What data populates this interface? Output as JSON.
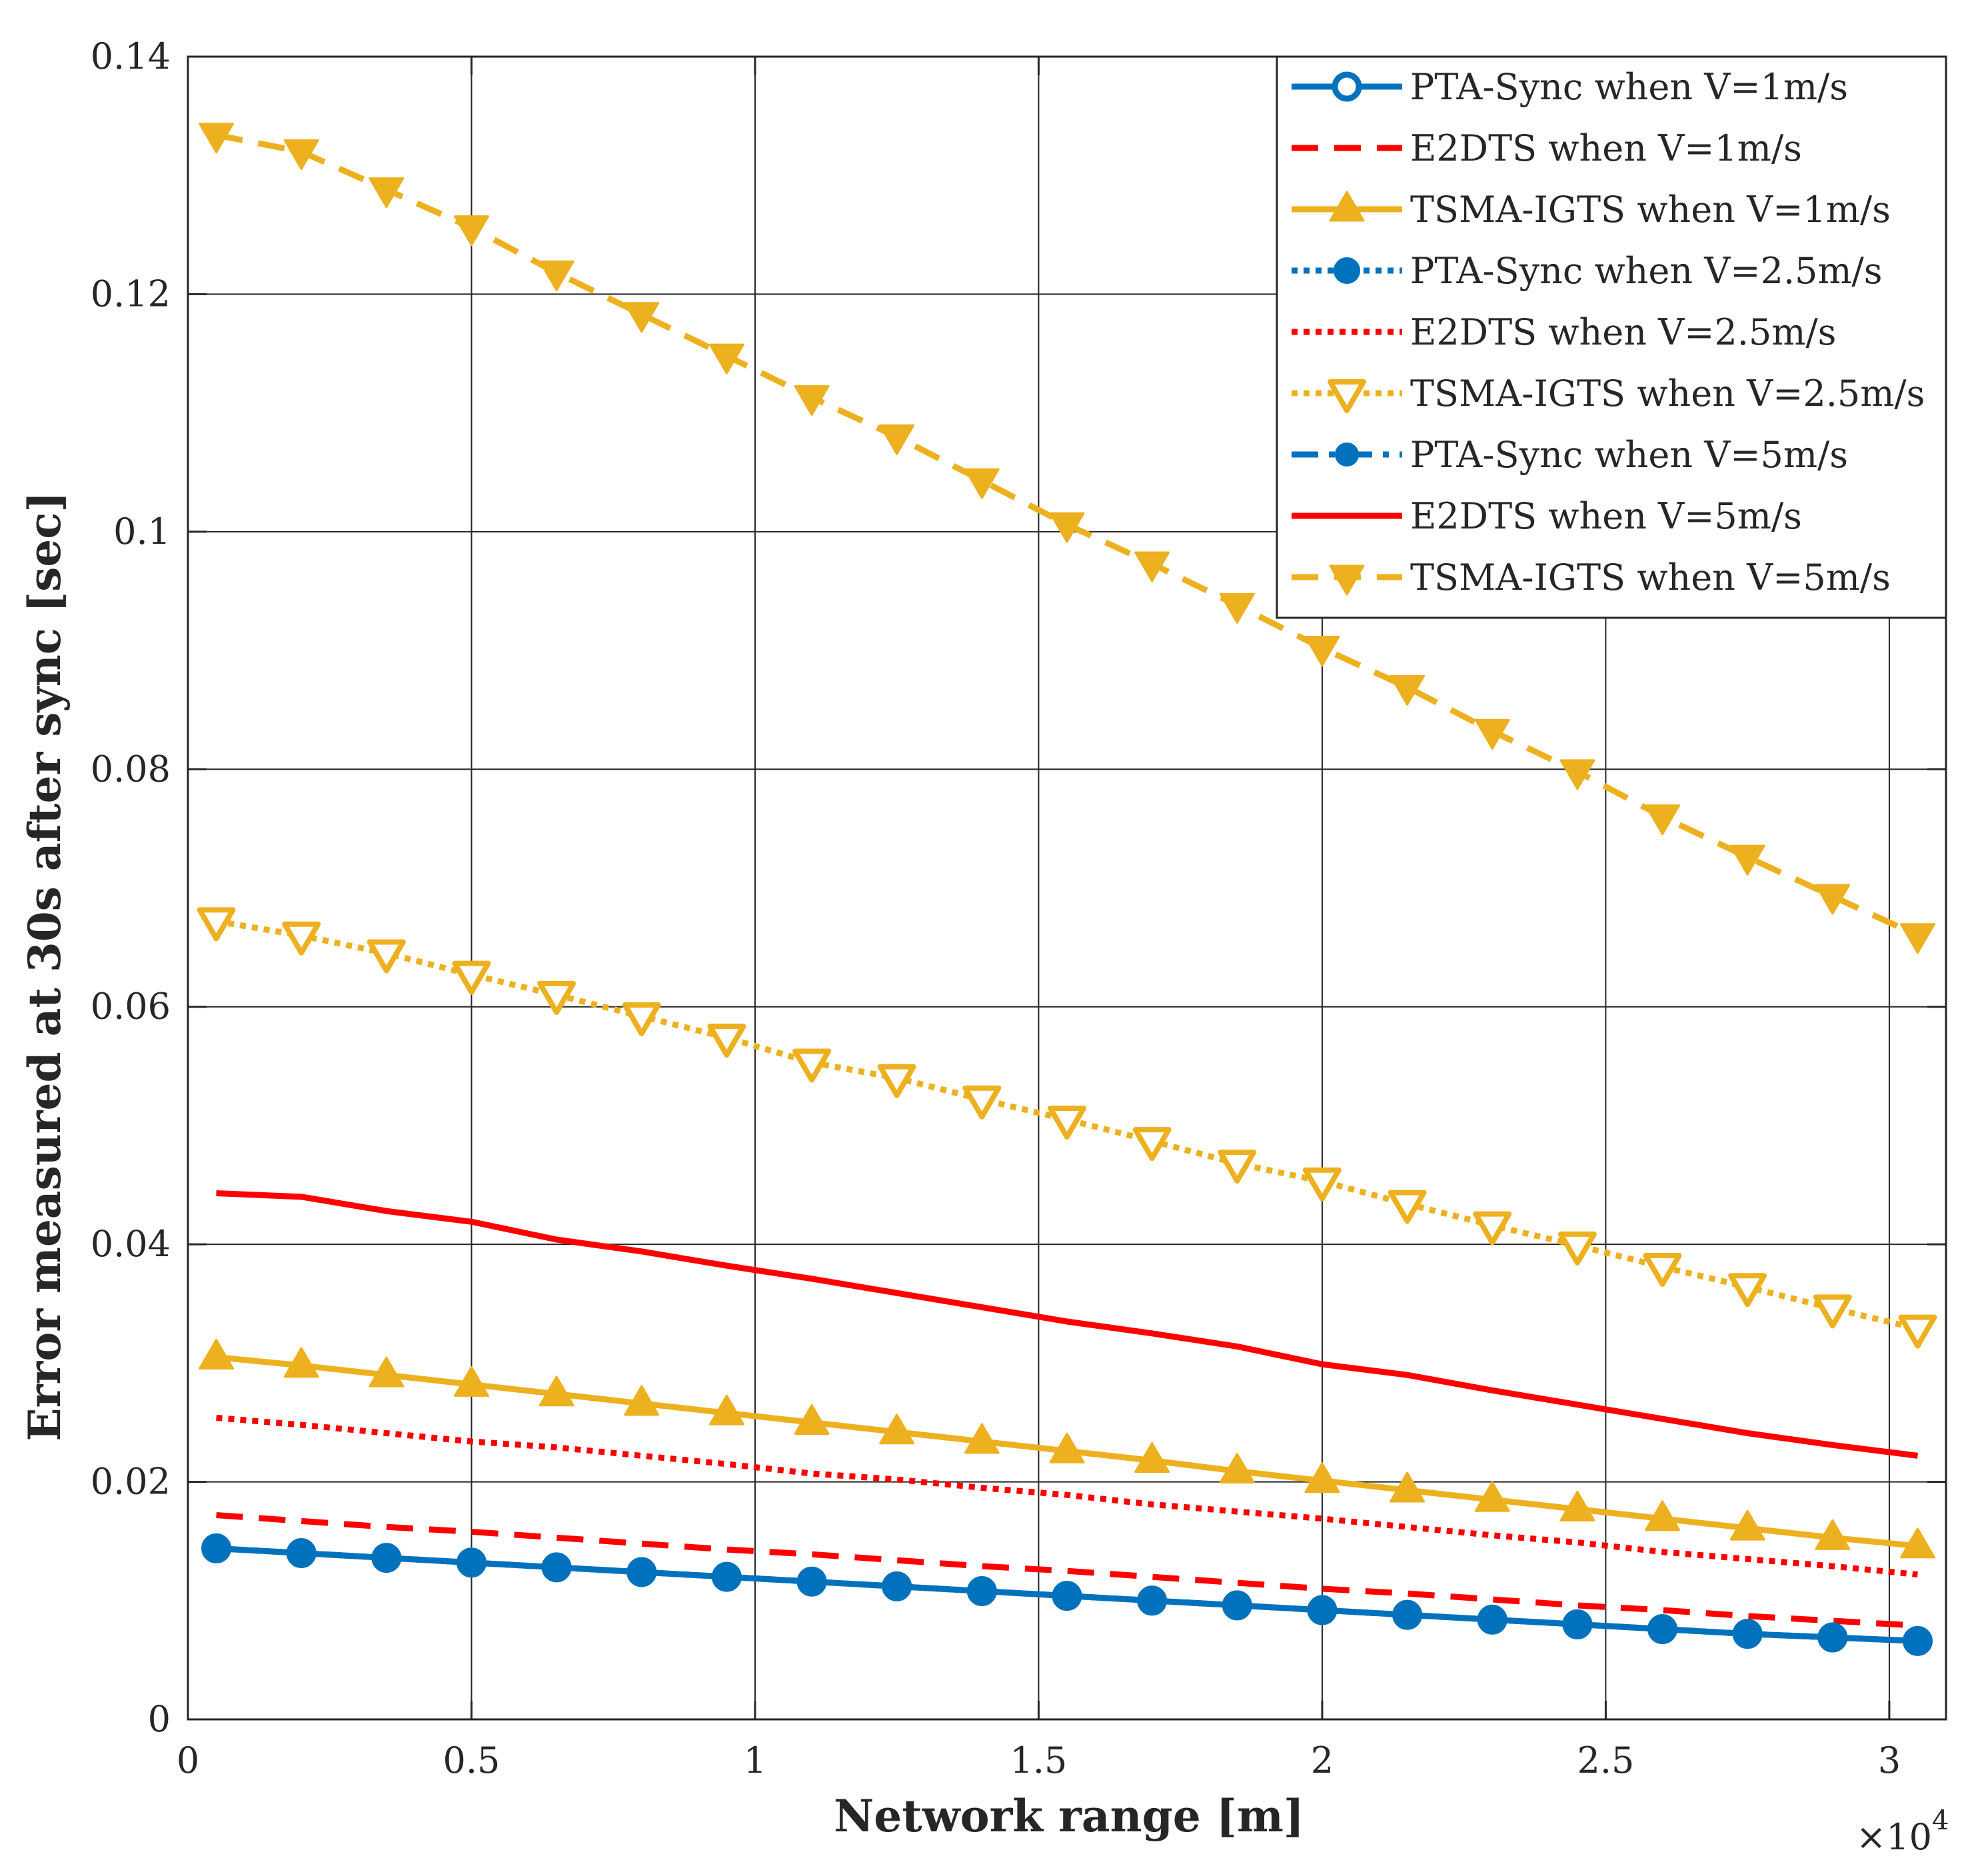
{
  "chart_data": {
    "type": "line",
    "title": "",
    "xlabel": "Network range [m]",
    "ylabel": "Error measured at 30s after sync [sec]",
    "x_multiplier_label": "×10",
    "x_multiplier_exponent": "4",
    "xlim": [
      0,
      3.1
    ],
    "ylim": [
      0,
      0.14
    ],
    "grid": "major x/y",
    "legend_position": "top-right",
    "x_ticks": [
      0,
      0.5,
      1,
      1.5,
      2,
      2.5,
      3
    ],
    "x_tick_labels": [
      "0",
      "0.5",
      "1",
      "1.5",
      "2",
      "2.5",
      "3"
    ],
    "y_ticks": [
      0,
      0.02,
      0.04,
      0.06,
      0.08,
      0.1,
      0.12,
      0.14
    ],
    "y_tick_labels": [
      "0",
      "0.02",
      "0.04",
      "0.06",
      "0.08",
      "0.1",
      "0.12",
      "0.14"
    ],
    "x": [
      0.05,
      0.2,
      0.35,
      0.5,
      0.65,
      0.8,
      0.95,
      1.1,
      1.25,
      1.4,
      1.55,
      1.7,
      1.85,
      2.0,
      2.15,
      2.3,
      2.45,
      2.6,
      2.75,
      2.9,
      3.05
    ],
    "series": [
      {
        "name": "PTA-Sync when V=1m/s",
        "color": "#0072BD",
        "dash": "solid",
        "marker": "circle-open",
        "values": [
          0.0144,
          0.014,
          0.0136,
          0.0132,
          0.0128,
          0.0124,
          0.012,
          0.0116,
          0.0112,
          0.0108,
          0.0104,
          0.01,
          0.0096,
          0.0092,
          0.0088,
          0.0084,
          0.008,
          0.0076,
          0.0072,
          0.0069,
          0.0066
        ]
      },
      {
        "name": "E2DTS when V=1m/s",
        "color": "#FF0000",
        "dash": "dashed",
        "marker": "none",
        "values": [
          0.0172,
          0.0167,
          0.0162,
          0.0158,
          0.0153,
          0.0148,
          0.0143,
          0.0139,
          0.0134,
          0.0129,
          0.0125,
          0.012,
          0.0115,
          0.011,
          0.0106,
          0.0101,
          0.0096,
          0.0092,
          0.0087,
          0.0083,
          0.0079
        ]
      },
      {
        "name": "TSMA-IGTS when V=1m/s",
        "color": "#EDB120",
        "dash": "solid",
        "marker": "triangle-up",
        "values": [
          0.0305,
          0.0298,
          0.029,
          0.0282,
          0.0274,
          0.0266,
          0.0258,
          0.025,
          0.0242,
          0.0234,
          0.0226,
          0.0218,
          0.0209,
          0.0201,
          0.0193,
          0.0185,
          0.0177,
          0.0169,
          0.0161,
          0.0153,
          0.0146
        ]
      },
      {
        "name": "PTA-Sync when V=2.5m/s",
        "color": "#0072BD",
        "dash": "dotted",
        "marker": "circle-filled",
        "values": [
          0.0144,
          0.014,
          0.0136,
          0.0132,
          0.0128,
          0.0124,
          0.012,
          0.0116,
          0.0112,
          0.0108,
          0.0104,
          0.01,
          0.0096,
          0.0092,
          0.0088,
          0.0084,
          0.008,
          0.0076,
          0.0072,
          0.0069,
          0.0066
        ]
      },
      {
        "name": "E2DTS when V=2.5m/s",
        "color": "#FF0000",
        "dash": "dotted",
        "marker": "none",
        "values": [
          0.0254,
          0.0248,
          0.0241,
          0.0234,
          0.0229,
          0.0222,
          0.0215,
          0.0207,
          0.0202,
          0.0195,
          0.0189,
          0.0181,
          0.0175,
          0.0169,
          0.0162,
          0.0155,
          0.0149,
          0.0141,
          0.0135,
          0.0129,
          0.0122
        ]
      },
      {
        "name": "TSMA-IGTS when V=2.5m/s",
        "color": "#EDB120",
        "dash": "dotted",
        "marker": "triangle-down-open",
        "values": [
          0.0672,
          0.066,
          0.0645,
          0.0627,
          0.061,
          0.0592,
          0.0574,
          0.0553,
          0.054,
          0.0522,
          0.0505,
          0.0487,
          0.0468,
          0.0453,
          0.0434,
          0.0416,
          0.0399,
          0.0381,
          0.0364,
          0.0346,
          0.0329
        ]
      },
      {
        "name": "PTA-Sync when V=5m/s",
        "color": "#0072BD",
        "dash": "dashdot",
        "marker": "circle-open-small",
        "values": [
          0.0144,
          0.014,
          0.0136,
          0.0132,
          0.0128,
          0.0124,
          0.012,
          0.0116,
          0.0112,
          0.0108,
          0.0104,
          0.01,
          0.0096,
          0.0092,
          0.0088,
          0.0084,
          0.008,
          0.0076,
          0.0072,
          0.0069,
          0.0066
        ]
      },
      {
        "name": "E2DTS when V=5m/s",
        "color": "#FF0000",
        "dash": "solid",
        "marker": "none",
        "values": [
          0.0443,
          0.044,
          0.0428,
          0.0419,
          0.0404,
          0.0394,
          0.0382,
          0.0371,
          0.0359,
          0.0347,
          0.0335,
          0.0325,
          0.0314,
          0.0299,
          0.029,
          0.0277,
          0.0265,
          0.0253,
          0.0241,
          0.0231,
          0.0222
        ]
      },
      {
        "name": "TSMA-IGTS when V=5m/s",
        "color": "#EDB120",
        "dash": "dashed",
        "marker": "triangle-down-filled",
        "values": [
          0.1334,
          0.132,
          0.1288,
          0.1256,
          0.1218,
          0.1183,
          0.1148,
          0.1113,
          0.108,
          0.1043,
          0.1006,
          0.0973,
          0.0938,
          0.0902,
          0.0869,
          0.0832,
          0.0798,
          0.076,
          0.0726,
          0.0693,
          0.066
        ]
      }
    ]
  }
}
